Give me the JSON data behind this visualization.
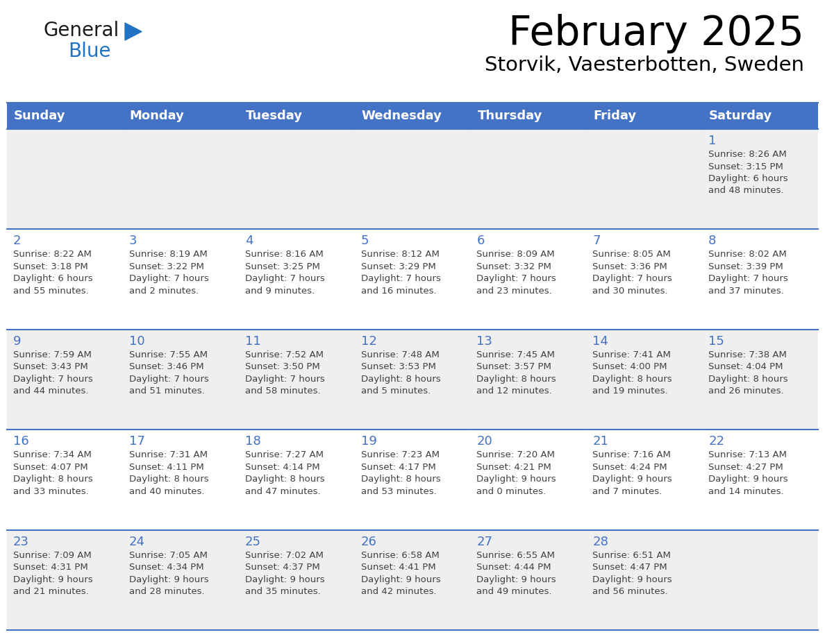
{
  "title": "February 2025",
  "subtitle": "Storvik, Vaesterbotten, Sweden",
  "header_bg": "#4472C4",
  "header_text_color": "#FFFFFF",
  "days_of_week": [
    "Sunday",
    "Monday",
    "Tuesday",
    "Wednesday",
    "Thursday",
    "Friday",
    "Saturday"
  ],
  "cell_bg_row0": "#EFEFEF",
  "cell_bg_row1": "#FFFFFF",
  "cell_bg_row2": "#EFEFEF",
  "cell_bg_row3": "#FFFFFF",
  "cell_bg_row4": "#EFEFEF",
  "border_color": "#4472C4",
  "day_number_color": "#4472C4",
  "info_text_color": "#404040",
  "calendar_data": [
    [
      null,
      null,
      null,
      null,
      null,
      null,
      {
        "day": "1",
        "sunrise": "8:26 AM",
        "sunset": "3:15 PM",
        "daylight": "6 hours\nand 48 minutes."
      }
    ],
    [
      {
        "day": "2",
        "sunrise": "8:22 AM",
        "sunset": "3:18 PM",
        "daylight": "6 hours\nand 55 minutes."
      },
      {
        "day": "3",
        "sunrise": "8:19 AM",
        "sunset": "3:22 PM",
        "daylight": "7 hours\nand 2 minutes."
      },
      {
        "day": "4",
        "sunrise": "8:16 AM",
        "sunset": "3:25 PM",
        "daylight": "7 hours\nand 9 minutes."
      },
      {
        "day": "5",
        "sunrise": "8:12 AM",
        "sunset": "3:29 PM",
        "daylight": "7 hours\nand 16 minutes."
      },
      {
        "day": "6",
        "sunrise": "8:09 AM",
        "sunset": "3:32 PM",
        "daylight": "7 hours\nand 23 minutes."
      },
      {
        "day": "7",
        "sunrise": "8:05 AM",
        "sunset": "3:36 PM",
        "daylight": "7 hours\nand 30 minutes."
      },
      {
        "day": "8",
        "sunrise": "8:02 AM",
        "sunset": "3:39 PM",
        "daylight": "7 hours\nand 37 minutes."
      }
    ],
    [
      {
        "day": "9",
        "sunrise": "7:59 AM",
        "sunset": "3:43 PM",
        "daylight": "7 hours\nand 44 minutes."
      },
      {
        "day": "10",
        "sunrise": "7:55 AM",
        "sunset": "3:46 PM",
        "daylight": "7 hours\nand 51 minutes."
      },
      {
        "day": "11",
        "sunrise": "7:52 AM",
        "sunset": "3:50 PM",
        "daylight": "7 hours\nand 58 minutes."
      },
      {
        "day": "12",
        "sunrise": "7:48 AM",
        "sunset": "3:53 PM",
        "daylight": "8 hours\nand 5 minutes."
      },
      {
        "day": "13",
        "sunrise": "7:45 AM",
        "sunset": "3:57 PM",
        "daylight": "8 hours\nand 12 minutes."
      },
      {
        "day": "14",
        "sunrise": "7:41 AM",
        "sunset": "4:00 PM",
        "daylight": "8 hours\nand 19 minutes."
      },
      {
        "day": "15",
        "sunrise": "7:38 AM",
        "sunset": "4:04 PM",
        "daylight": "8 hours\nand 26 minutes."
      }
    ],
    [
      {
        "day": "16",
        "sunrise": "7:34 AM",
        "sunset": "4:07 PM",
        "daylight": "8 hours\nand 33 minutes."
      },
      {
        "day": "17",
        "sunrise": "7:31 AM",
        "sunset": "4:11 PM",
        "daylight": "8 hours\nand 40 minutes."
      },
      {
        "day": "18",
        "sunrise": "7:27 AM",
        "sunset": "4:14 PM",
        "daylight": "8 hours\nand 47 minutes."
      },
      {
        "day": "19",
        "sunrise": "7:23 AM",
        "sunset": "4:17 PM",
        "daylight": "8 hours\nand 53 minutes."
      },
      {
        "day": "20",
        "sunrise": "7:20 AM",
        "sunset": "4:21 PM",
        "daylight": "9 hours\nand 0 minutes."
      },
      {
        "day": "21",
        "sunrise": "7:16 AM",
        "sunset": "4:24 PM",
        "daylight": "9 hours\nand 7 minutes."
      },
      {
        "day": "22",
        "sunrise": "7:13 AM",
        "sunset": "4:27 PM",
        "daylight": "9 hours\nand 14 minutes."
      }
    ],
    [
      {
        "day": "23",
        "sunrise": "7:09 AM",
        "sunset": "4:31 PM",
        "daylight": "9 hours\nand 21 minutes."
      },
      {
        "day": "24",
        "sunrise": "7:05 AM",
        "sunset": "4:34 PM",
        "daylight": "9 hours\nand 28 minutes."
      },
      {
        "day": "25",
        "sunrise": "7:02 AM",
        "sunset": "4:37 PM",
        "daylight": "9 hours\nand 35 minutes."
      },
      {
        "day": "26",
        "sunrise": "6:58 AM",
        "sunset": "4:41 PM",
        "daylight": "9 hours\nand 42 minutes."
      },
      {
        "day": "27",
        "sunrise": "6:55 AM",
        "sunset": "4:44 PM",
        "daylight": "9 hours\nand 49 minutes."
      },
      {
        "day": "28",
        "sunrise": "6:51 AM",
        "sunset": "4:47 PM",
        "daylight": "9 hours\nand 56 minutes."
      },
      null
    ]
  ],
  "logo_general_color": "#1a1a1a",
  "logo_blue_color": "#2272C3",
  "logo_triangle_color": "#2272C3",
  "fig_width": 11.88,
  "fig_height": 9.18,
  "dpi": 100
}
